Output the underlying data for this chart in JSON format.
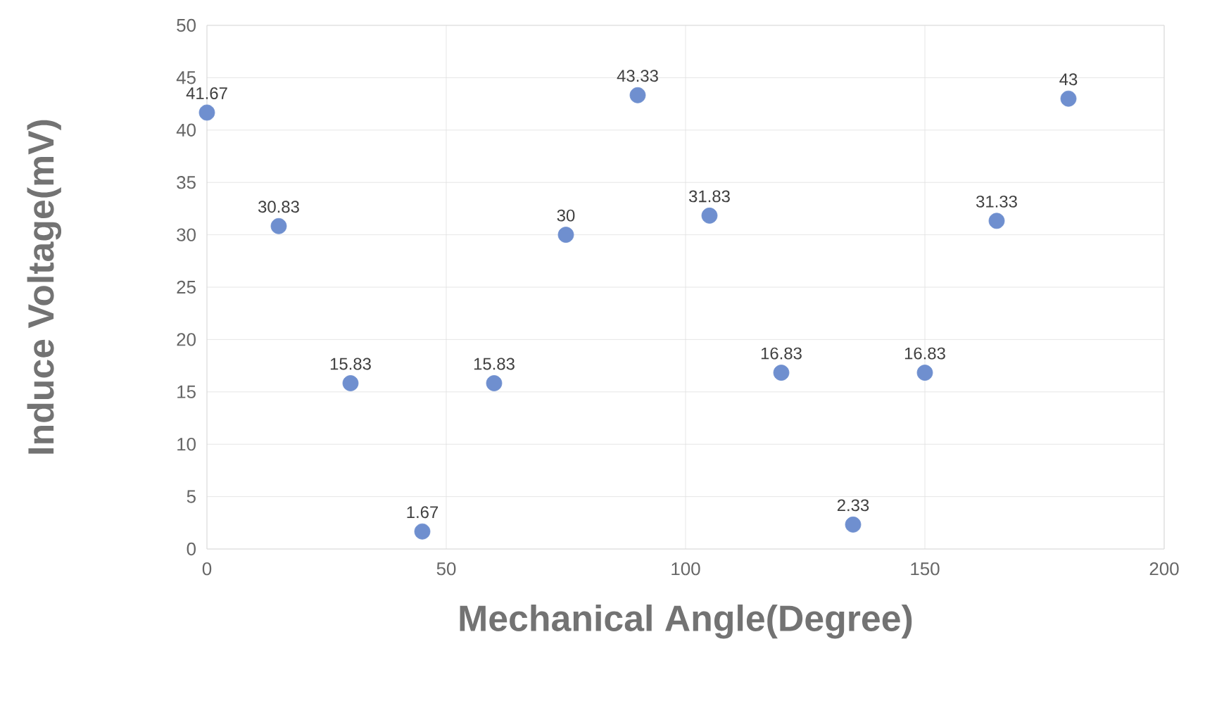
{
  "chart_data": {
    "type": "scatter",
    "xlabel": "Mechanical Angle(Degree)",
    "ylabel": "Induce Voltage(mV)",
    "x": [
      0,
      15,
      30,
      45,
      60,
      75,
      90,
      105,
      120,
      135,
      150,
      165,
      180
    ],
    "values": [
      41.67,
      30.83,
      15.83,
      1.67,
      15.83,
      30,
      43.33,
      31.83,
      16.83,
      2.33,
      16.83,
      31.33,
      43
    ],
    "color": "#6f8fcf",
    "marker": "circle",
    "data_labels": true,
    "grid": true,
    "xlim": [
      0,
      200
    ],
    "xticks": [
      0,
      50,
      100,
      150,
      200
    ],
    "ylim": [
      0,
      50
    ],
    "yticks": [
      0,
      5,
      10,
      15,
      20,
      25,
      30,
      35,
      40,
      45,
      50
    ]
  }
}
